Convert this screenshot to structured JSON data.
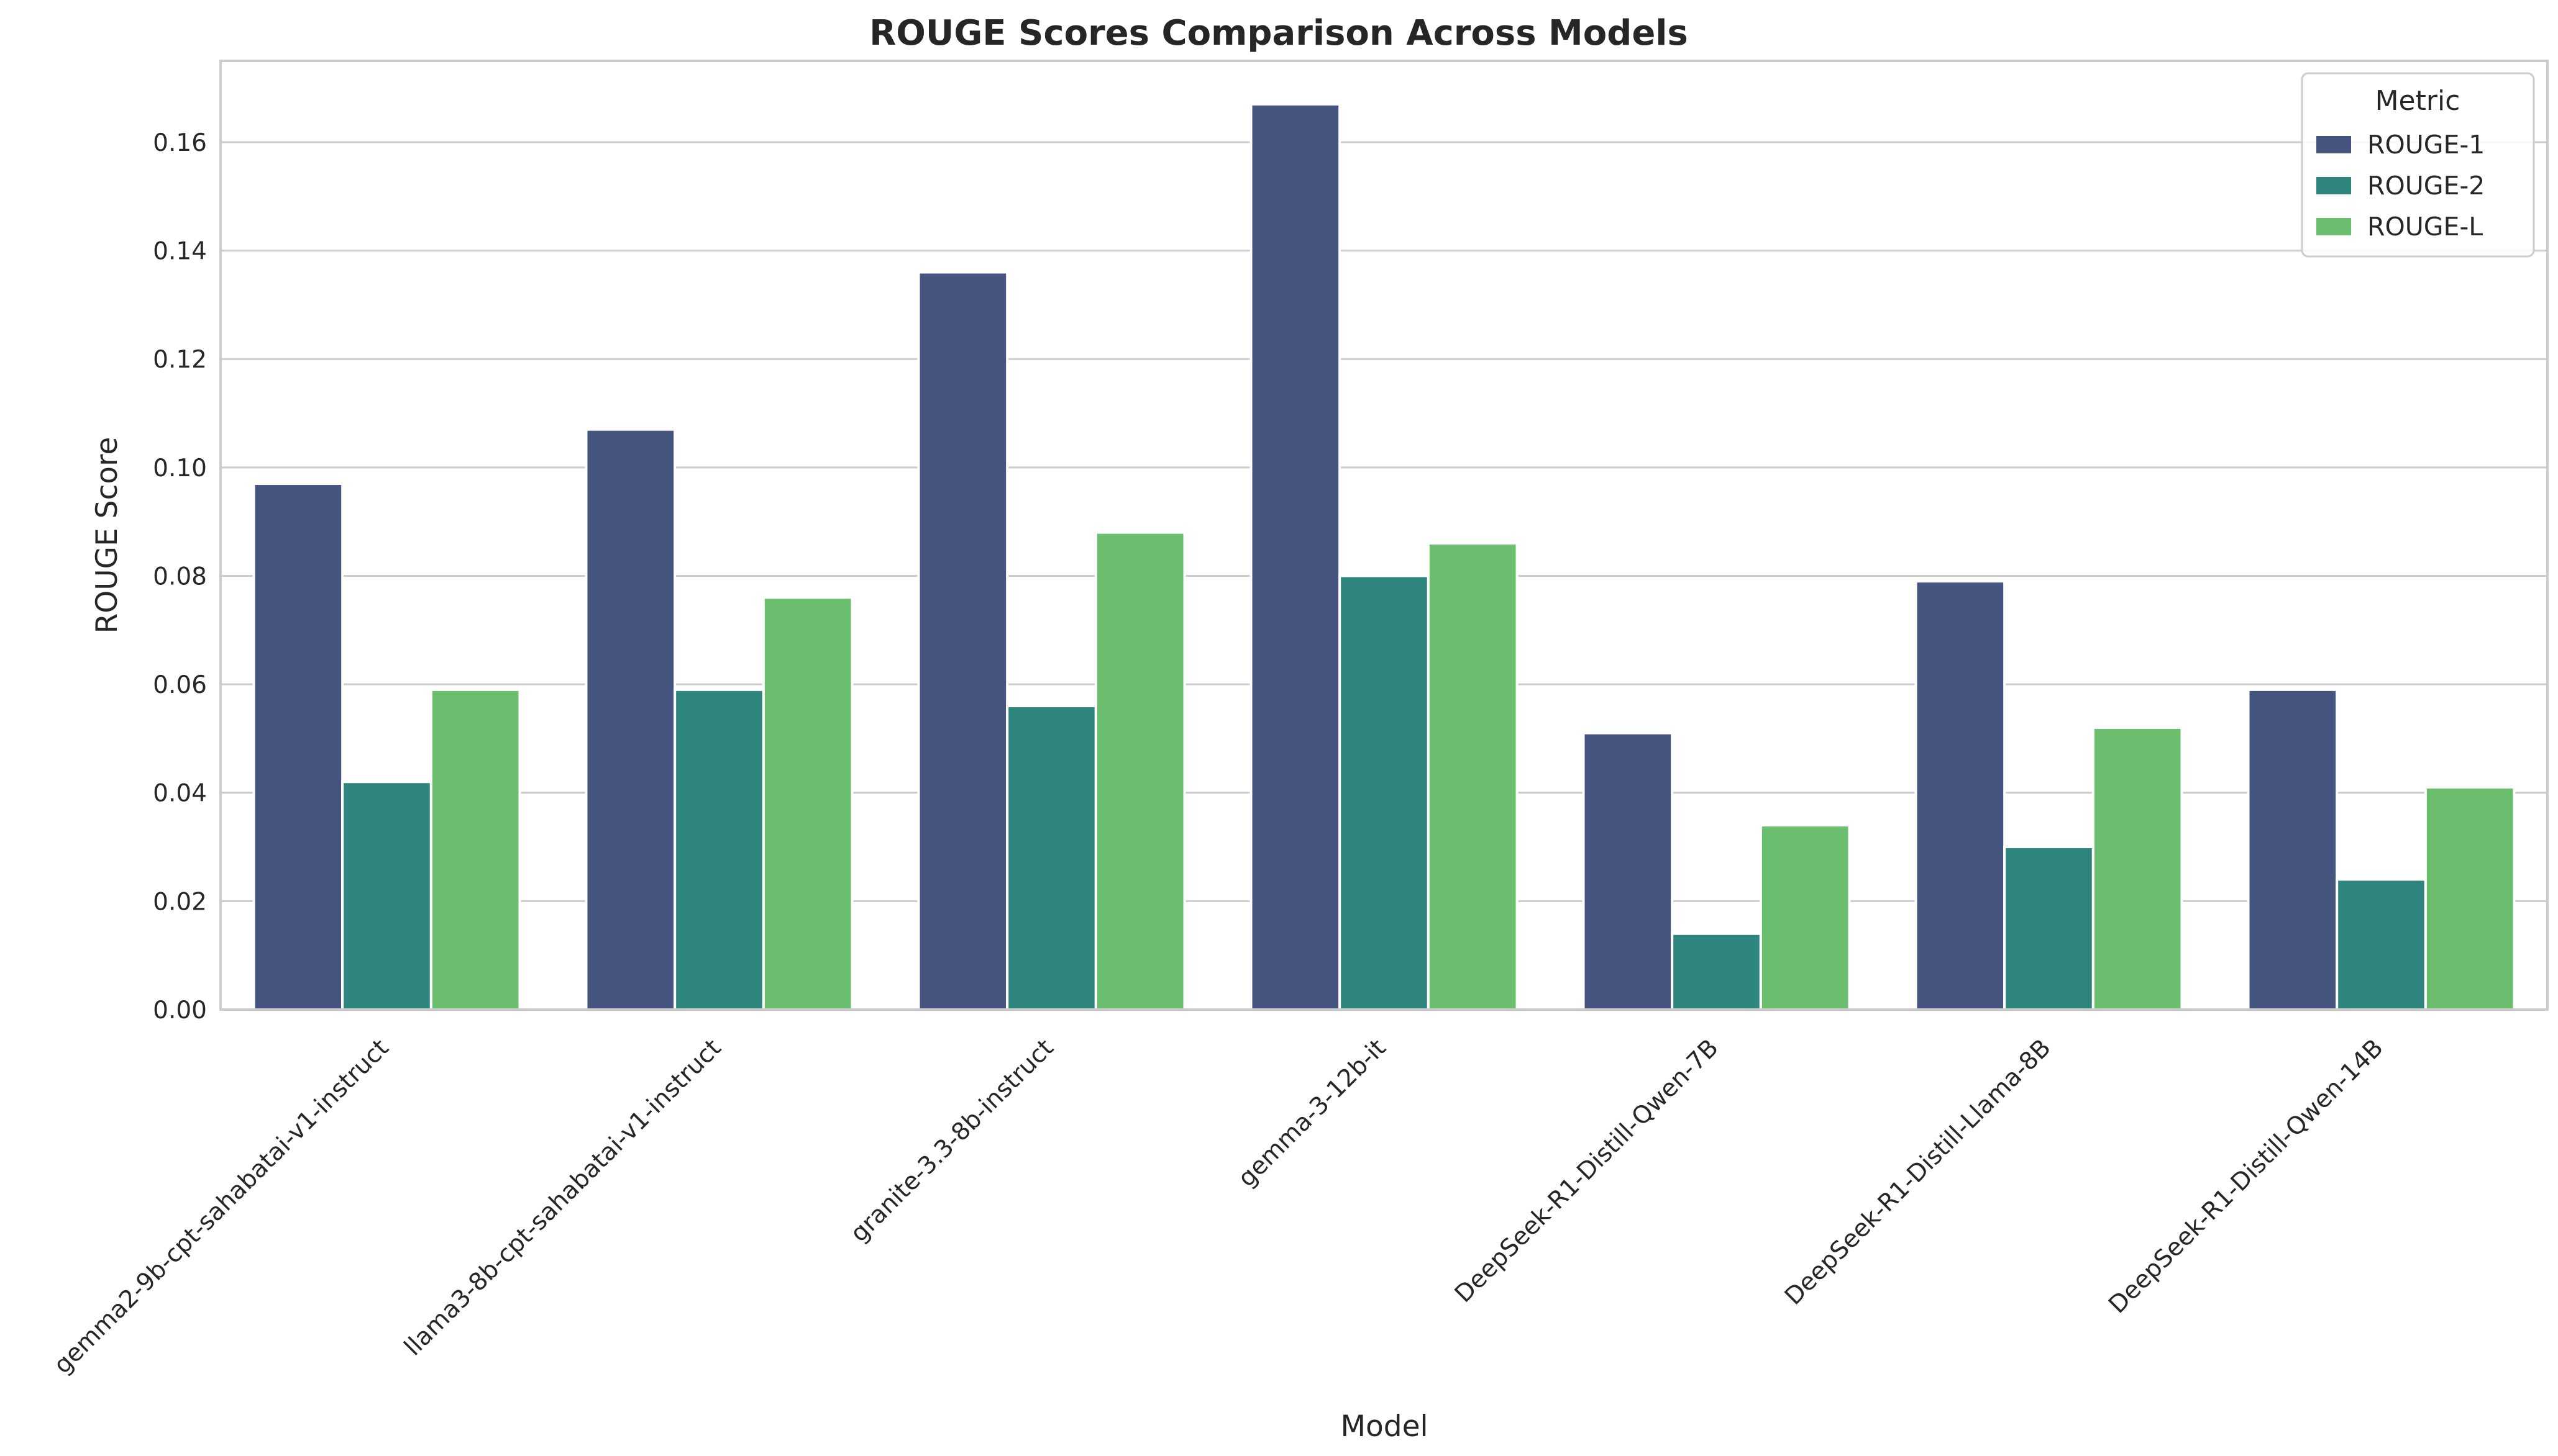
{
  "chart_data": {
    "type": "bar",
    "title": "ROUGE Scores Comparison Across Models",
    "xlabel": "Model",
    "ylabel": "ROUGE Score",
    "ylim": [
      0,
      0.175
    ],
    "yticks": [
      "0.00",
      "0.02",
      "0.04",
      "0.06",
      "0.08",
      "0.10",
      "0.12",
      "0.14",
      "0.16"
    ],
    "grid": true,
    "legend": {
      "title": "Metric",
      "position": "top-right"
    },
    "categories": [
      "gemma2-9b-cpt-sahabatai-v1-instruct",
      "llama3-8b-cpt-sahabatai-v1-instruct",
      "granite-3.3-8b-instruct",
      "gemma-3-12b-it",
      "DeepSeek-R1-Distill-Qwen-7B",
      "DeepSeek-R1-Distill-Llama-8B",
      "DeepSeek-R1-Distill-Qwen-14B"
    ],
    "series": [
      {
        "name": "ROUGE-1",
        "color": "#46557f",
        "values": [
          0.097,
          0.107,
          0.136,
          0.167,
          0.051,
          0.079,
          0.059
        ]
      },
      {
        "name": "ROUGE-2",
        "color": "#2e857e",
        "values": [
          0.042,
          0.059,
          0.056,
          0.08,
          0.014,
          0.03,
          0.024
        ]
      },
      {
        "name": "ROUGE-L",
        "color": "#6bbe6d",
        "values": [
          0.059,
          0.076,
          0.088,
          0.086,
          0.034,
          0.052,
          0.041
        ]
      }
    ]
  }
}
